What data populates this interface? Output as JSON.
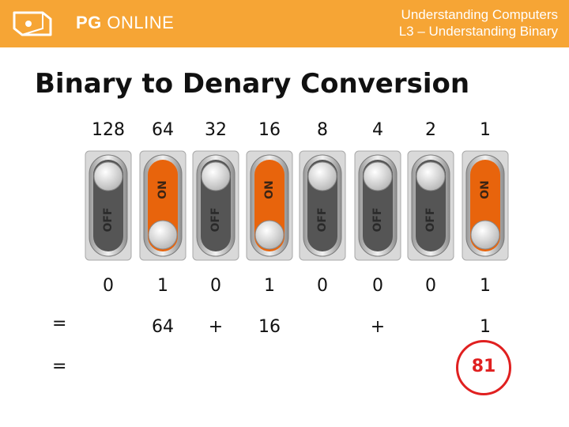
{
  "header": {
    "brand_bold": "PG",
    "brand_light": " ONLINE",
    "course_line1": "Understanding Computers",
    "course_line2": "L3 – Understanding Binary"
  },
  "title": "Binary to Denary Conversion",
  "columns": [
    {
      "place": "128",
      "state": "off",
      "bit": "0",
      "term": ""
    },
    {
      "place": "64",
      "state": "on",
      "bit": "1",
      "term": "64"
    },
    {
      "place": "32",
      "state": "off",
      "bit": "0",
      "term": "+"
    },
    {
      "place": "16",
      "state": "on",
      "bit": "1",
      "term": "16"
    },
    {
      "place": "8",
      "state": "off",
      "bit": "0",
      "term": ""
    },
    {
      "place": "4",
      "state": "off",
      "bit": "0",
      "term": "+"
    },
    {
      "place": "2",
      "state": "off",
      "bit": "0",
      "term": ""
    },
    {
      "place": "1",
      "state": "on",
      "bit": "1",
      "term": "1"
    }
  ],
  "switch_labels": {
    "on": "ON",
    "off": "OFF"
  },
  "equals_sign": "=",
  "result": "81",
  "colors": {
    "header": "#f6a535",
    "on": "#e8640c",
    "result": "#e02020"
  }
}
